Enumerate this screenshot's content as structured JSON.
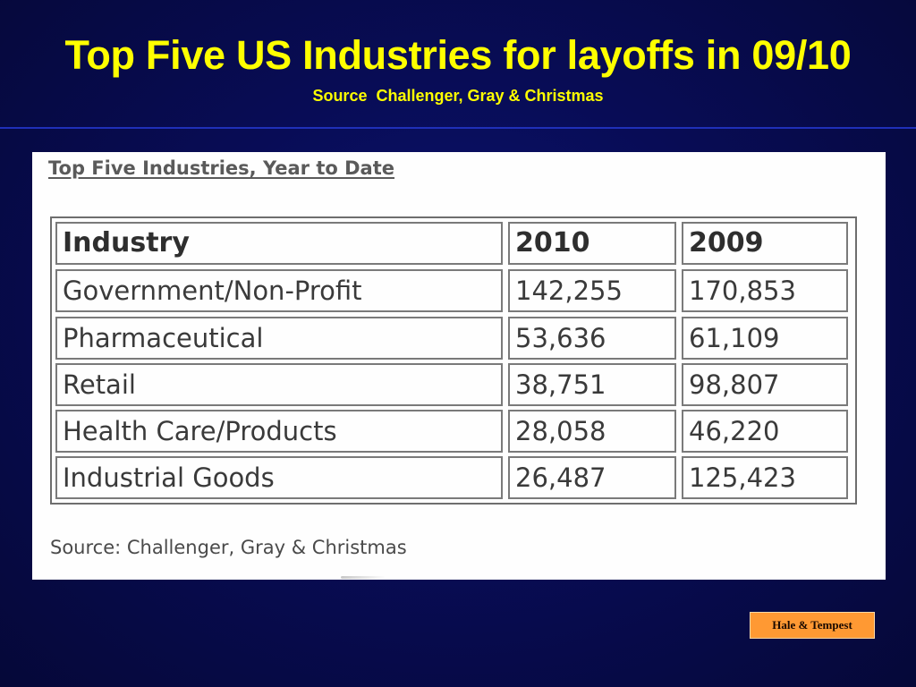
{
  "slide": {
    "title": "Top Five US Industries for layoffs in 09/10",
    "subtitle": "Source  Challenger, Gray & Christmas",
    "badge": "Hale & Tempest"
  },
  "scan": {
    "heading": "Top Five Industries, Year to Date",
    "source": "Source: Challenger, Gray & Christmas",
    "table": {
      "columns": [
        "Industry",
        "2010",
        "2009"
      ],
      "rows": [
        [
          "Government/Non-Profit",
          "142,255",
          "170,853"
        ],
        [
          "Pharmaceutical",
          "53,636",
          "61,109"
        ],
        [
          "Retail",
          "38,751",
          "98,807"
        ],
        [
          "Health Care/Products",
          "28,058",
          "46,220"
        ],
        [
          "Industrial Goods",
          "26,487",
          "125,423"
        ]
      ]
    }
  }
}
